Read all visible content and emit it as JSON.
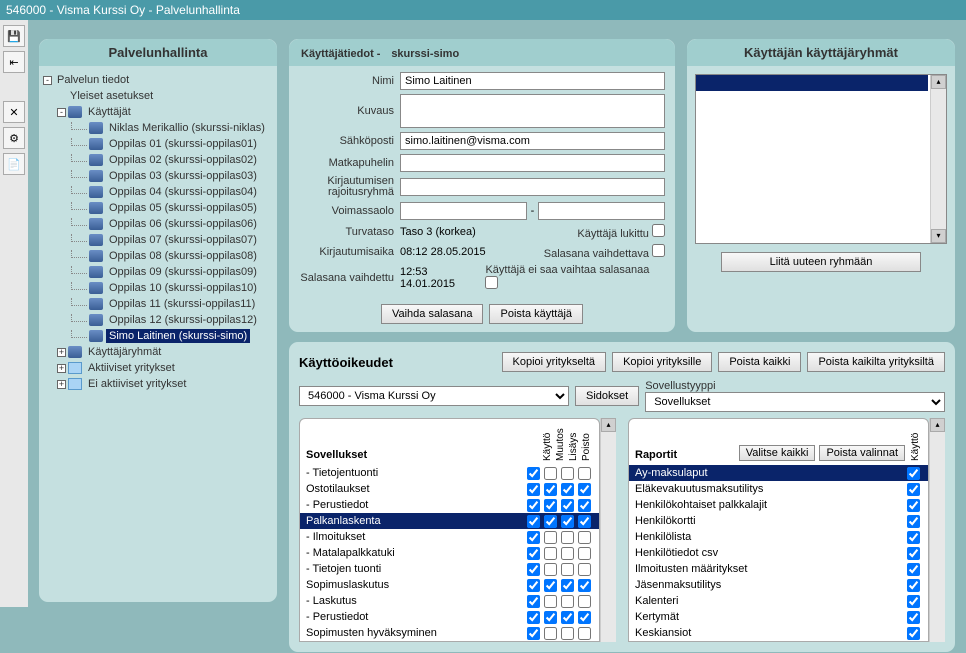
{
  "window": {
    "title": "546000 - Visma Kurssi Oy - Palvelunhallinta"
  },
  "left": {
    "title": "Palvelunhallinta",
    "root": "Palvelun tiedot",
    "yleiset": "Yleiset asetukset",
    "kayttajat": "Käyttäjät",
    "users": [
      "Niklas Merikallio (skurssi-niklas)",
      "Oppilas 01 (skurssi-oppilas01)",
      "Oppilas 02 (skurssi-oppilas02)",
      "Oppilas 03 (skurssi-oppilas03)",
      "Oppilas 04 (skurssi-oppilas04)",
      "Oppilas 05 (skurssi-oppilas05)",
      "Oppilas 06 (skurssi-oppilas06)",
      "Oppilas 07 (skurssi-oppilas07)",
      "Oppilas 08 (skurssi-oppilas08)",
      "Oppilas 09 (skurssi-oppilas09)",
      "Oppilas 10 (skurssi-oppilas10)",
      "Oppilas 11 (skurssi-oppilas11)",
      "Oppilas 12 (skurssi-oppilas12)",
      "Simo Laitinen (skurssi-simo)"
    ],
    "selected_index": 13,
    "kayttajaryhmat": "Käyttäjäryhmät",
    "aktiiviset": "Aktiiviset yritykset",
    "ei_aktiiviset": "Ei aktiiviset yritykset"
  },
  "user": {
    "panel_title_prefix": "Käyttäjätiedot -",
    "panel_title_user": "skurssi-simo",
    "labels": {
      "nimi": "Nimi",
      "kuvaus": "Kuvaus",
      "sahkoposti": "Sähköposti",
      "matkapuhelin": "Matkapuhelin",
      "kirjrajoitus": "Kirjautumisen rajoitusryhmä",
      "voimassaolo": "Voimassaolo",
      "turvataso": "Turvataso",
      "kirjaika": "Kirjautumisaika",
      "salasana_vaihdettu": "Salasana vaihdettu"
    },
    "values": {
      "nimi": "Simo Laitinen",
      "kuvaus": "",
      "sahkoposti": "simo.laitinen@visma.com",
      "matkapuhelin": "",
      "kirjrajoitus": "",
      "voimassa_from": "",
      "voimassa_to": "",
      "turvataso": "Taso 3 (korkea)",
      "kirjaika": "08:12 28.05.2015",
      "salasana_vaihdettu": "12:53 14.01.2015"
    },
    "checks": {
      "lukittu_label": "Käyttäjä lukittu",
      "lukittu": false,
      "vaihdettava_label": "Salasana vaihdettava",
      "vaihdettava": false,
      "eisaa_label": "Käyttäjä ei saa vaihtaa salasanaa",
      "eisaa": false
    },
    "buttons": {
      "vaihda": "Vaihda salasana",
      "poista": "Poista käyttäjä"
    }
  },
  "groups": {
    "title": "Käyttäjän käyttäjäryhmät",
    "button": "Liitä uuteen ryhmään"
  },
  "perm": {
    "title": "Käyttöoikeudet",
    "buttons": {
      "kopioi_yritykselta": "Kopioi yritykseltä",
      "kopioi_yrityksille": "Kopioi yrityksille",
      "poista_kaikki": "Poista kaikki",
      "poista_kaikilta": "Poista kaikilta yrityksiltä"
    },
    "company": "546000 - Visma Kurssi Oy",
    "sidokset": "Sidokset",
    "sovellustyyppi_label": "Sovellustyyppi",
    "sovellustyyppi": "Sovellukset",
    "apps": {
      "title": "Sovellukset",
      "cols": [
        "Käyttö",
        "Muutos",
        "Lisäys",
        "Poisto"
      ],
      "rows": [
        {
          "name": "- Tietojentuonti",
          "c": [
            true,
            false,
            false,
            false
          ],
          "sel": false
        },
        {
          "name": "Ostotilaukset",
          "c": [
            true,
            true,
            true,
            true
          ],
          "sel": false
        },
        {
          "name": "- Perustiedot",
          "c": [
            true,
            true,
            true,
            true
          ],
          "sel": false
        },
        {
          "name": "Palkanlaskenta",
          "c": [
            true,
            true,
            true,
            true
          ],
          "sel": true
        },
        {
          "name": "- Ilmoitukset",
          "c": [
            true,
            false,
            false,
            false
          ],
          "sel": false
        },
        {
          "name": "- Matalapalkkatuki",
          "c": [
            true,
            false,
            false,
            false
          ],
          "sel": false
        },
        {
          "name": "- Tietojen tuonti",
          "c": [
            true,
            false,
            false,
            false
          ],
          "sel": false
        },
        {
          "name": "Sopimuslaskutus",
          "c": [
            true,
            true,
            true,
            true
          ],
          "sel": false
        },
        {
          "name": "- Laskutus",
          "c": [
            true,
            false,
            false,
            false
          ],
          "sel": false
        },
        {
          "name": "- Perustiedot",
          "c": [
            true,
            true,
            true,
            true
          ],
          "sel": false
        },
        {
          "name": "Sopimusten hyväksyminen",
          "c": [
            true,
            false,
            false,
            false
          ],
          "sel": false
        }
      ]
    },
    "reports": {
      "title": "Raportit",
      "valitse_kaikki": "Valitse kaikki",
      "poista_valinnat": "Poista valinnat",
      "col": "Käyttö",
      "rows": [
        {
          "name": "Ay-maksulaput",
          "c": true,
          "sel": true
        },
        {
          "name": "Eläkevakuutusmaksutilitys",
          "c": true,
          "sel": false
        },
        {
          "name": "Henkilökohtaiset palkkalajit",
          "c": true,
          "sel": false
        },
        {
          "name": "Henkilökortti",
          "c": true,
          "sel": false
        },
        {
          "name": "Henkilölista",
          "c": true,
          "sel": false
        },
        {
          "name": "Henkilötiedot csv",
          "c": true,
          "sel": false
        },
        {
          "name": "Ilmoitusten määritykset",
          "c": true,
          "sel": false
        },
        {
          "name": "Jäsenmaksutilitys",
          "c": true,
          "sel": false
        },
        {
          "name": "Kalenteri",
          "c": true,
          "sel": false
        },
        {
          "name": "Kertymät",
          "c": true,
          "sel": false
        },
        {
          "name": "Keskiansiot",
          "c": true,
          "sel": false
        }
      ]
    }
  }
}
